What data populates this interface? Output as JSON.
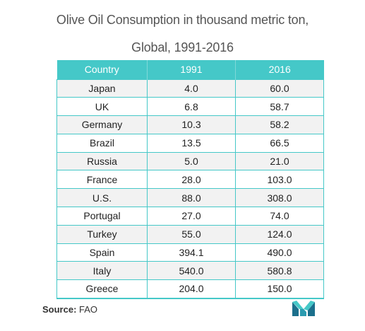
{
  "title_line1": "Olive Oil Consumption in thousand metric ton,",
  "title_line2": "Global, 1991-2016",
  "source_label": "Source:",
  "source_value": "FAO",
  "colors": {
    "accent": "#45c8c8",
    "stripe": "#f2f2f2",
    "logo_dark": "#1b6f8c",
    "logo_light": "#45c8c8"
  },
  "logo_icon": "mordor-intelligence-logo-icon",
  "chart_data": {
    "type": "table",
    "title": "Olive Oil Consumption in thousand metric ton, Global, 1991-2016",
    "columns": [
      "Country",
      "1991",
      "2016"
    ],
    "rows": [
      [
        "Japan",
        "4.0",
        "60.0"
      ],
      [
        "UK",
        "6.8",
        "58.7"
      ],
      [
        "Germany",
        "10.3",
        "58.2"
      ],
      [
        "Brazil",
        "13.5",
        "66.5"
      ],
      [
        "Russia",
        "5.0",
        "21.0"
      ],
      [
        "France",
        "28.0",
        "103.0"
      ],
      [
        "U.S.",
        "88.0",
        "308.0"
      ],
      [
        "Portugal",
        "27.0",
        "74.0"
      ],
      [
        "Turkey",
        "55.0",
        "124.0"
      ],
      [
        "Spain",
        "394.1",
        "490.0"
      ],
      [
        "Italy",
        "540.0",
        "580.8"
      ],
      [
        "Greece",
        "204.0",
        "150.0"
      ]
    ]
  }
}
